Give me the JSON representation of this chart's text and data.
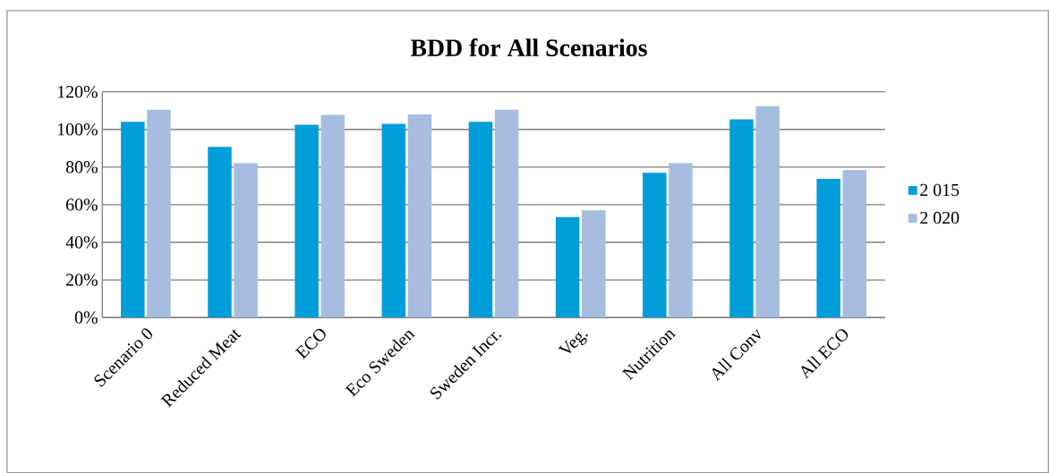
{
  "chart_data": {
    "type": "bar",
    "title": "BDD for All Scenarios",
    "categories": [
      "Scenario 0",
      "Reduced Meat",
      "ECO",
      "Eco Sweden",
      "Sweden Incr.",
      "Veg.",
      "Nutrition",
      "All Conv",
      "All ECO"
    ],
    "series": [
      {
        "name": "2 015",
        "color": "#009ddb",
        "values": [
          104,
          90.7,
          102.5,
          103,
          104,
          53.4,
          77,
          105.3,
          73.7
        ]
      },
      {
        "name": "2 020",
        "color": "#a6bddf",
        "values": [
          110.5,
          82,
          107.7,
          108,
          110.5,
          57,
          82,
          112.4,
          78.4
        ]
      }
    ],
    "ylim": [
      0,
      120
    ],
    "yticks": [
      {
        "value": 0,
        "label": "0%"
      },
      {
        "value": 20,
        "label": "20%"
      },
      {
        "value": 40,
        "label": "40%"
      },
      {
        "value": 60,
        "label": "60%"
      },
      {
        "value": 80,
        "label": "80%"
      },
      {
        "value": 100,
        "label": "100%"
      },
      {
        "value": 120,
        "label": "120%"
      }
    ],
    "grid": "y",
    "legend": "right"
  }
}
